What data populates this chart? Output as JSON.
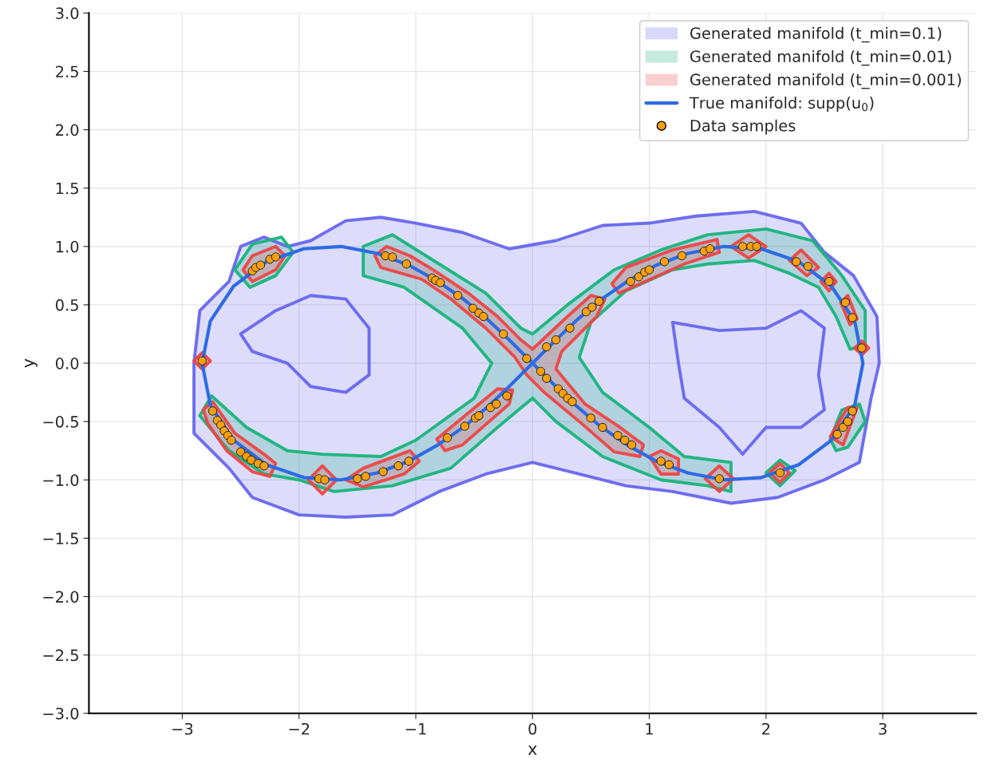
{
  "chart_data": {
    "type": "scatter",
    "xlabel": "x",
    "ylabel": "y",
    "xlim": [
      -3.8,
      3.8
    ],
    "ylim": [
      -3.0,
      3.0
    ],
    "xticks": [
      {
        "value": -3,
        "label": "−3"
      },
      {
        "value": -2,
        "label": "−2"
      },
      {
        "value": -1,
        "label": "−1"
      },
      0,
      1,
      2,
      3
    ],
    "yticks": [
      {
        "value": -3.0,
        "label": "−3.0"
      },
      {
        "value": -2.5,
        "label": "−2.5"
      },
      {
        "value": -2.0,
        "label": "−2.0"
      },
      {
        "value": -1.5,
        "label": "−1.5"
      },
      {
        "value": -1.0,
        "label": "−1.0"
      },
      {
        "value": -0.5,
        "label": "−0.5"
      },
      {
        "value": 0.0,
        "label": "0.0"
      },
      {
        "value": 0.5,
        "label": "0.5"
      },
      {
        "value": 1.0,
        "label": "1.0"
      },
      {
        "value": 1.5,
        "label": "1.5"
      },
      {
        "value": 2.0,
        "label": "2.0"
      },
      {
        "value": 2.5,
        "label": "2.5"
      },
      {
        "value": 3.0,
        "label": "3.0"
      }
    ],
    "grid": true,
    "legend": "top right",
    "series": [
      {
        "type": "area",
        "name": "Generated manifold (t_min=0.1)",
        "color": "#6666ee",
        "x": [
          -2.9,
          -2.85,
          -2.6,
          -2.5,
          -2.3,
          -2.1,
          -1.9,
          -1.6,
          -1.3,
          -1.0,
          -0.6,
          -0.2,
          0.2,
          0.6,
          1.0,
          1.4,
          1.9,
          2.3,
          2.5,
          2.75,
          2.95,
          2.97,
          2.9,
          2.8,
          2.5,
          2.1,
          1.7,
          1.2,
          0.8,
          0.4,
          0.0,
          -0.4,
          -0.8,
          -1.2,
          -1.6,
          -2.0,
          -2.4,
          -2.6,
          -2.9,
          -2.9,
          null,
          -2.2,
          -1.9,
          -1.6,
          -1.4,
          -1.4,
          -1.6,
          -1.9,
          -2.1,
          -2.4,
          -2.5,
          null,
          1.2,
          1.6,
          2.0,
          2.3,
          2.5,
          2.45,
          2.5,
          2.3,
          2.0,
          1.8,
          1.6,
          1.3,
          1.25
        ],
        "values": [
          0.0,
          0.45,
          0.7,
          1.0,
          1.08,
          1.0,
          1.05,
          1.22,
          1.25,
          1.2,
          1.12,
          0.98,
          1.05,
          1.18,
          1.2,
          1.26,
          1.3,
          1.2,
          0.95,
          0.75,
          0.4,
          0.0,
          -0.3,
          -0.85,
          -1.0,
          -1.15,
          -1.2,
          -1.1,
          -1.05,
          -0.95,
          -0.85,
          -0.95,
          -1.1,
          -1.3,
          -1.32,
          -1.3,
          -1.15,
          -0.9,
          -0.6,
          -0.3,
          null,
          0.45,
          0.58,
          0.55,
          0.3,
          -0.1,
          -0.25,
          -0.2,
          0.0,
          0.1,
          0.25,
          null,
          0.35,
          0.28,
          0.3,
          0.45,
          0.3,
          -0.1,
          -0.4,
          -0.55,
          -0.55,
          -0.78,
          -0.55,
          -0.3,
          0.0
        ]
      },
      {
        "type": "area",
        "name": "Generated manifold (t_min=0.01)",
        "color": "#19b37a",
        "x": [
          -2.85,
          -2.75,
          -2.45,
          -2.1,
          -1.8,
          -1.3,
          -1.0,
          -0.5,
          -0.35,
          -0.6,
          -1.1,
          -1.45,
          -1.45,
          -1.2,
          -0.8,
          -0.4,
          -0.1,
          0.0,
          0.3,
          0.7,
          1.1,
          1.5,
          2.0,
          2.4,
          2.65,
          2.85,
          2.85,
          2.72,
          2.6,
          2.45,
          2.2,
          1.9,
          1.5,
          1.2,
          0.8,
          0.5,
          0.4,
          0.6,
          1.0,
          1.3,
          1.7,
          1.7,
          1.5,
          1.1,
          0.6,
          0.2,
          0.0,
          -0.3,
          -0.7,
          -1.2,
          -1.7,
          -2.0,
          -2.3,
          -2.6
        ],
        "values": [
          -0.45,
          -0.28,
          -0.55,
          -0.75,
          -0.78,
          -0.8,
          -0.66,
          -0.3,
          0.0,
          0.3,
          0.65,
          0.75,
          1.0,
          1.1,
          0.85,
          0.6,
          0.3,
          0.25,
          0.5,
          0.8,
          0.97,
          1.1,
          1.15,
          1.05,
          0.75,
          0.45,
          0.15,
          0.12,
          0.4,
          0.65,
          0.77,
          0.88,
          0.85,
          0.8,
          0.62,
          0.35,
          0.05,
          -0.25,
          -0.55,
          -0.8,
          -0.85,
          -1.1,
          -1.05,
          -1.0,
          -0.8,
          -0.5,
          -0.3,
          -0.55,
          -0.9,
          -1.05,
          -1.1,
          -1.0,
          -0.95,
          -0.75
        ]
      },
      {
        "type": "area",
        "color": "#19b37a",
        "x": [
          -2.55,
          -2.4,
          -2.15,
          -2.05,
          -2.2,
          -2.42
        ],
        "values": [
          0.8,
          1.02,
          1.08,
          0.95,
          0.75,
          0.65
        ]
      },
      {
        "type": "area",
        "color": "#19b37a",
        "x": [
          2.55,
          2.65,
          2.8,
          2.85,
          2.7,
          2.6
        ],
        "values": [
          -0.65,
          -0.4,
          -0.35,
          -0.5,
          -0.72,
          -0.75
        ]
      },
      {
        "type": "area",
        "color": "#19b37a",
        "x": [
          2.0,
          2.12,
          2.25,
          2.12
        ],
        "values": [
          -0.94,
          -0.83,
          -0.92,
          -1.05
        ]
      },
      {
        "type": "area",
        "name": "Generated manifold (t_min=0.001)",
        "color": "#ee4444",
        "x": [
          -1.35,
          -1.25,
          -1.05,
          -0.85,
          -0.55,
          -0.3,
          -0.1,
          0.0,
          0.3,
          0.5,
          0.62,
          0.55,
          0.25,
          0.2,
          0.45,
          0.75,
          0.95,
          0.92,
          0.7,
          0.4,
          0.1,
          -0.05,
          -0.15,
          -0.4,
          -0.7,
          -0.95,
          -1.3
        ],
        "values": [
          0.92,
          1.0,
          0.92,
          0.8,
          0.6,
          0.4,
          0.2,
          0.12,
          0.4,
          0.58,
          0.55,
          0.4,
          0.1,
          -0.05,
          -0.35,
          -0.55,
          -0.7,
          -0.8,
          -0.76,
          -0.5,
          -0.25,
          -0.1,
          0.05,
          0.3,
          0.55,
          0.72,
          0.82
        ]
      },
      {
        "type": "area",
        "color": "#ee4444",
        "x": [
          -2.48,
          -2.4,
          -2.2,
          -2.12,
          -2.2,
          -2.4
        ],
        "values": [
          0.8,
          0.92,
          1.0,
          0.92,
          0.8,
          0.7
        ]
      },
      {
        "type": "area",
        "color": "#ee4444",
        "x": [
          -2.9,
          -2.83,
          -2.76,
          -2.83
        ],
        "values": [
          0.02,
          0.09,
          0.02,
          -0.05
        ]
      },
      {
        "type": "area",
        "color": "#ee4444",
        "x": [
          -2.82,
          -2.74,
          -2.55,
          -2.3,
          -2.2,
          -2.25,
          -2.4,
          -2.62,
          -2.78
        ],
        "values": [
          -0.4,
          -0.33,
          -0.6,
          -0.78,
          -0.86,
          -0.97,
          -0.93,
          -0.75,
          -0.52
        ]
      },
      {
        "type": "area",
        "color": "#ee4444",
        "x": [
          -1.92,
          -1.8,
          -1.68,
          -1.8
        ],
        "values": [
          -1.0,
          -0.88,
          -1.0,
          -1.12
        ]
      },
      {
        "type": "area",
        "color": "#ee4444",
        "x": [
          -1.6,
          -1.45,
          -1.05,
          -0.97,
          -1.1,
          -1.45
        ],
        "values": [
          -1.0,
          -0.9,
          -0.75,
          -0.84,
          -0.95,
          -1.06
        ]
      },
      {
        "type": "area",
        "color": "#ee4444",
        "x": [
          -0.82,
          -0.7,
          -0.3,
          -0.17,
          -0.2,
          -0.6,
          -0.75
        ],
        "values": [
          -0.65,
          -0.55,
          -0.22,
          -0.23,
          -0.35,
          -0.7,
          -0.75
        ]
      },
      {
        "type": "area",
        "color": "#ee4444",
        "x": [
          1.0,
          1.1,
          1.25,
          1.25,
          1.1
        ],
        "values": [
          -0.8,
          -0.75,
          -0.82,
          -0.95,
          -0.95
        ]
      },
      {
        "type": "area",
        "color": "#ee4444",
        "x": [
          0.68,
          0.8,
          1.2,
          1.58,
          1.6,
          1.3,
          0.9,
          0.74
        ],
        "values": [
          0.68,
          0.82,
          0.97,
          1.06,
          0.95,
          0.85,
          0.67,
          0.6
        ]
      },
      {
        "type": "area",
        "color": "#ee4444",
        "x": [
          1.7,
          1.85,
          2.0,
          1.85
        ],
        "values": [
          1.0,
          1.1,
          1.0,
          0.9
        ]
      },
      {
        "type": "area",
        "color": "#ee4444",
        "x": [
          2.2,
          2.3,
          2.45,
          2.35
        ],
        "values": [
          0.88,
          0.97,
          0.82,
          0.75
        ]
      },
      {
        "type": "area",
        "color": "#ee4444",
        "x": [
          2.47,
          2.54,
          2.6,
          2.54
        ],
        "values": [
          0.7,
          0.77,
          0.7,
          0.62
        ]
      },
      {
        "type": "area",
        "color": "#ee4444",
        "x": [
          2.64,
          2.7,
          2.78,
          2.72
        ],
        "values": [
          0.52,
          0.58,
          0.38,
          0.33
        ]
      },
      {
        "type": "area",
        "color": "#ee4444",
        "x": [
          2.76,
          2.82,
          2.88,
          2.82
        ],
        "values": [
          0.13,
          0.19,
          0.13,
          0.07
        ]
      },
      {
        "type": "area",
        "color": "#ee4444",
        "x": [
          1.48,
          1.6,
          1.72,
          1.6
        ],
        "values": [
          -0.99,
          -0.88,
          -0.99,
          -1.1
        ]
      },
      {
        "type": "area",
        "color": "#ee4444",
        "x": [
          2.03,
          2.12,
          2.2,
          2.12
        ],
        "values": [
          -0.94,
          -0.86,
          -0.94,
          -1.02
        ]
      },
      {
        "type": "area",
        "color": "#ee4444",
        "x": [
          2.55,
          2.7,
          2.78,
          2.66
        ],
        "values": [
          -0.63,
          -0.38,
          -0.38,
          -0.7
        ]
      },
      {
        "type": "line",
        "name": "True manifold: supp(u$_{0}$)",
        "color": "#2d6be4",
        "x": [
          0.0,
          0.19,
          0.38,
          0.58,
          0.81,
          1.06,
          1.33,
          1.64,
          1.96,
          2.28,
          2.56,
          2.76,
          2.83,
          null,
          0.0,
          0.19,
          0.38,
          0.58,
          0.81,
          1.06,
          1.33,
          1.64,
          1.96,
          2.28,
          2.56,
          2.76,
          2.83,
          null,
          -2.83,
          -2.76,
          -2.56,
          -2.28,
          -1.96,
          -1.64,
          -1.33,
          -1.06,
          -0.81,
          -0.58,
          -0.38,
          -0.19,
          0.0,
          null,
          -2.83,
          -2.76,
          -2.56,
          -2.28,
          -1.96,
          -1.64,
          -1.33,
          -1.06,
          -0.81,
          -0.58,
          -0.38,
          -0.19,
          0.0
        ],
        "values": [
          0.0,
          0.19,
          0.37,
          0.54,
          0.7,
          0.84,
          0.94,
          1.0,
          0.98,
          0.87,
          0.66,
          0.36,
          0.0,
          null,
          0.0,
          -0.19,
          -0.37,
          -0.54,
          -0.7,
          -0.84,
          -0.94,
          -1.0,
          -0.98,
          -0.87,
          -0.66,
          -0.36,
          0.0,
          null,
          0.0,
          0.36,
          0.66,
          0.87,
          0.98,
          1.0,
          0.94,
          0.84,
          0.7,
          0.54,
          0.37,
          0.19,
          0.0,
          null,
          0.0,
          -0.36,
          -0.66,
          -0.87,
          -0.98,
          -1.0,
          -0.94,
          -0.84,
          -0.7,
          -0.54,
          -0.37,
          -0.19,
          0.0
        ]
      },
      {
        "name": "Data samples",
        "color": "#f5a00f",
        "marker": "circle",
        "x": [
          -2.4,
          -2.37,
          -2.33,
          -2.25,
          -2.2,
          -2.83,
          -2.74,
          -2.7,
          -2.67,
          -2.64,
          -2.61,
          -2.58,
          -2.5,
          -2.45,
          -2.41,
          -2.35,
          -2.3,
          -1.83,
          -1.78,
          -1.5,
          -1.43,
          -1.28,
          -1.15,
          -1.06,
          -0.73,
          -0.58,
          -0.49,
          -0.46,
          -0.36,
          -0.31,
          -0.22,
          -1.26,
          -1.2,
          -1.08,
          -0.86,
          -0.83,
          -0.79,
          -0.64,
          -0.51,
          -0.46,
          -0.42,
          -0.25,
          -0.05,
          0.07,
          0.12,
          0.22,
          0.26,
          0.3,
          0.34,
          0.5,
          0.6,
          0.73,
          0.79,
          0.85,
          1.1,
          1.17,
          1.6,
          2.12,
          0.12,
          0.2,
          0.32,
          0.46,
          0.51,
          0.57,
          0.84,
          0.91,
          0.96,
          1.0,
          1.13,
          1.28,
          1.47,
          1.52,
          1.8,
          1.87,
          1.92,
          2.26,
          2.36,
          2.54,
          2.68,
          2.74,
          2.82,
          2.61,
          2.66,
          2.7,
          2.74
        ],
        "values": [
          0.79,
          0.82,
          0.84,
          0.89,
          0.91,
          0.02,
          -0.41,
          -0.49,
          -0.53,
          -0.58,
          -0.62,
          -0.66,
          -0.76,
          -0.8,
          -0.83,
          -0.86,
          -0.88,
          -0.99,
          -1.0,
          -0.99,
          -0.97,
          -0.93,
          -0.88,
          -0.84,
          -0.64,
          -0.54,
          -0.47,
          -0.45,
          -0.38,
          -0.35,
          -0.28,
          0.92,
          0.91,
          0.85,
          0.73,
          0.71,
          0.69,
          0.58,
          0.47,
          0.43,
          0.4,
          0.25,
          0.04,
          -0.07,
          -0.13,
          -0.22,
          -0.26,
          -0.3,
          -0.33,
          -0.47,
          -0.55,
          -0.62,
          -0.66,
          -0.7,
          -0.84,
          -0.87,
          -0.99,
          -0.94,
          0.14,
          0.2,
          0.3,
          0.44,
          0.48,
          0.53,
          0.7,
          0.74,
          0.78,
          0.8,
          0.87,
          0.92,
          0.96,
          0.98,
          1.0,
          1.0,
          1.0,
          0.87,
          0.83,
          0.7,
          0.52,
          0.39,
          0.13,
          -0.61,
          -0.55,
          -0.5,
          -0.41
        ]
      }
    ]
  }
}
